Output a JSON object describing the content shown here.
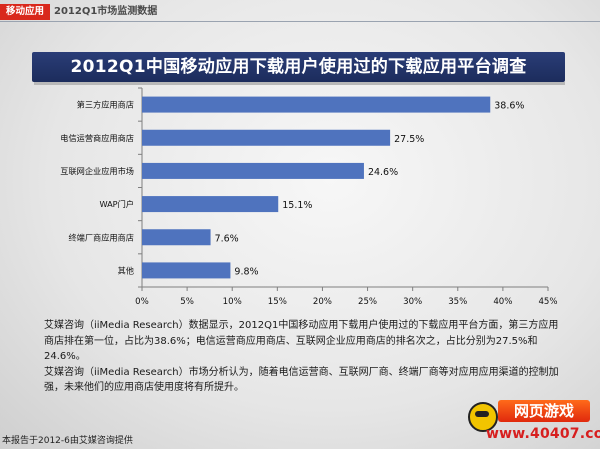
{
  "header": {
    "tag": "移动应用",
    "subtitle": "2012Q1市场监测数据"
  },
  "title": "2012Q1中国移动应用下载用户使用过的下载应用平台调查",
  "chart_data": {
    "type": "bar",
    "orientation": "horizontal",
    "categories": [
      "第三方应用商店",
      "电信运营商应用商店",
      "互联网企业应用市场",
      "WAP门户",
      "终端厂商应用商店",
      "其他"
    ],
    "values": [
      38.6,
      27.5,
      24.6,
      15.1,
      7.6,
      9.8
    ],
    "value_labels": [
      "38.6%",
      "27.5%",
      "24.6%",
      "15.1%",
      "7.6%",
      "9.8%"
    ],
    "xlim": [
      0,
      45
    ],
    "x_ticks": [
      0,
      5,
      10,
      15,
      20,
      25,
      30,
      35,
      40,
      45
    ],
    "x_tick_labels": [
      "0%",
      "5%",
      "10%",
      "15%",
      "20%",
      "25%",
      "30%",
      "35%",
      "40%",
      "45%"
    ],
    "bar_color": "#4f73be",
    "grid": false,
    "legend": "none"
  },
  "description": {
    "p1": "艾媒咨询（iiMedia Research）数据显示，2012Q1中国移动应用下载用户使用过的下载应用平台方面，第三方应用商店排在第一位，占比为38.6%；电信运营商应用商店、互联网企业应用商店的排名次之，占比分别为27.5%和24.6%。",
    "p2": "艾媒咨询（iiMedia Research）市场分析认为，随着电信运营商、互联网厂商、终端厂商等对应用应用渠道的控制加强，未来他们的应用商店使用度将有所提升。"
  },
  "footer": "本报告于2012-6由艾媒咨询提供",
  "watermark": {
    "text": "网页游戏",
    "url": "www.40407.com"
  }
}
